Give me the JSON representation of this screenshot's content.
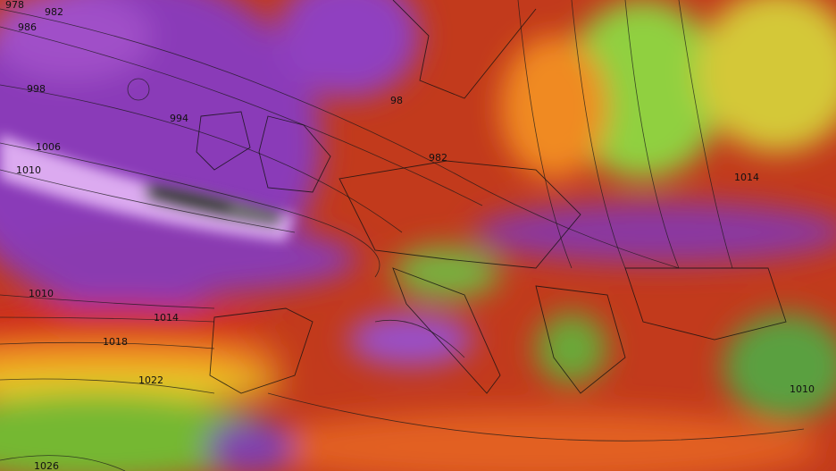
{
  "isobar_labels": [
    978,
    982,
    986,
    998,
    994,
    1006,
    1010,
    1010,
    1014,
    1018,
    1022,
    1026,
    98,
    982,
    1014,
    1010
  ]
}
